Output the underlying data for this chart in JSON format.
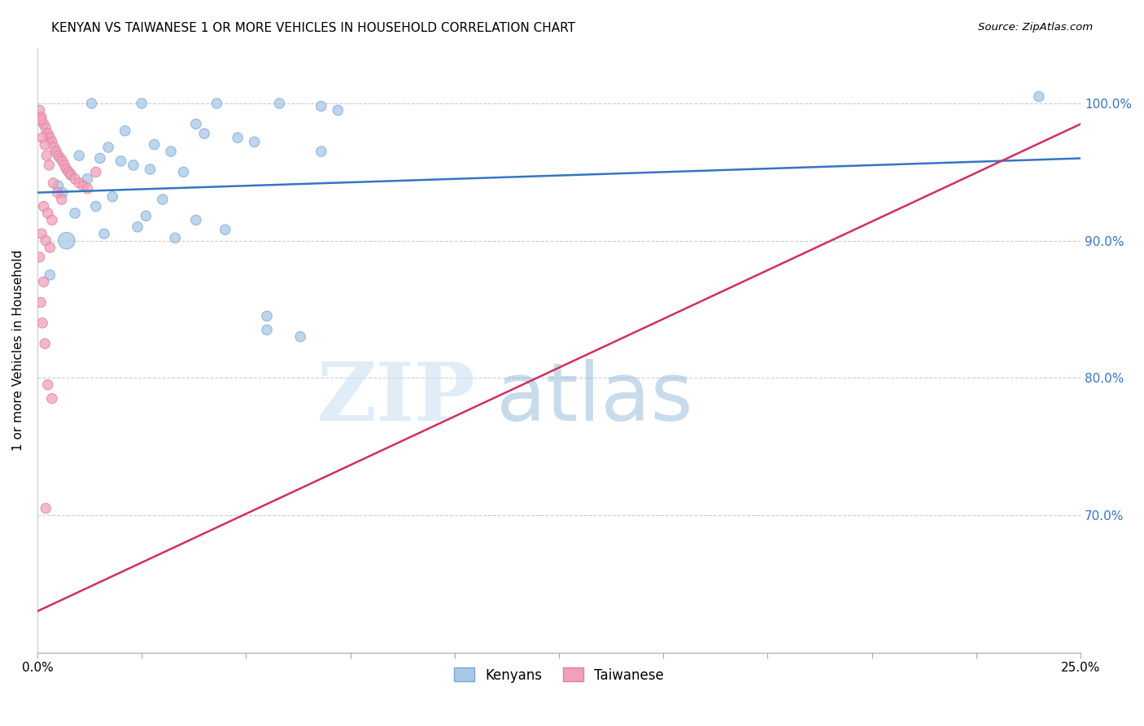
{
  "title": "KENYAN VS TAIWANESE 1 OR MORE VEHICLES IN HOUSEHOLD CORRELATION CHART",
  "source": "Source: ZipAtlas.com",
  "ylabel": "1 or more Vehicles in Household",
  "ytick_labels": [
    "70.0%",
    "80.0%",
    "90.0%",
    "100.0%"
  ],
  "ytick_vals": [
    70.0,
    80.0,
    90.0,
    100.0
  ],
  "xlim": [
    0.0,
    25.0
  ],
  "ylim": [
    60.0,
    104.0
  ],
  "kenyan_color": "#a8c8e8",
  "taiwanese_color": "#f0a0b8",
  "kenyan_edge_color": "#7aaad0",
  "taiwanese_edge_color": "#e080a0",
  "kenyan_line_color": "#3575c2",
  "taiwanese_line_color": "#d03060",
  "watermark_zip": "ZIP",
  "watermark_atlas": "atlas",
  "kenyan_x": [
    1.3,
    2.5,
    4.3,
    5.8,
    6.8,
    7.2,
    3.8,
    2.1,
    4.0,
    4.8,
    5.2,
    2.8,
    1.7,
    3.2,
    1.0,
    1.5,
    2.0,
    2.3,
    2.7,
    3.5,
    0.8,
    1.2,
    0.5,
    0.6,
    1.8,
    3.0,
    1.4,
    0.9,
    2.6,
    3.8,
    2.4,
    4.5,
    1.6,
    3.3,
    0.7,
    24.0,
    0.3,
    5.5,
    5.5,
    6.3,
    6.8
  ],
  "kenyan_y": [
    100.0,
    100.0,
    100.0,
    100.0,
    99.8,
    99.5,
    98.5,
    98.0,
    97.8,
    97.5,
    97.2,
    97.0,
    96.8,
    96.5,
    96.2,
    96.0,
    95.8,
    95.5,
    95.2,
    95.0,
    94.8,
    94.5,
    94.0,
    93.5,
    93.2,
    93.0,
    92.5,
    92.0,
    91.8,
    91.5,
    91.0,
    90.8,
    90.5,
    90.2,
    90.0,
    100.5,
    87.5,
    84.5,
    83.5,
    83.0,
    96.5
  ],
  "kenyan_sizes": [
    80,
    80,
    80,
    80,
    80,
    80,
    80,
    80,
    80,
    80,
    80,
    80,
    80,
    80,
    80,
    80,
    80,
    80,
    80,
    80,
    80,
    80,
    80,
    80,
    80,
    80,
    80,
    80,
    80,
    80,
    80,
    80,
    80,
    80,
    220,
    80,
    80,
    80,
    80,
    80,
    80
  ],
  "taiwanese_x": [
    0.05,
    0.1,
    0.15,
    0.2,
    0.25,
    0.3,
    0.35,
    0.4,
    0.45,
    0.5,
    0.55,
    0.6,
    0.65,
    0.7,
    0.75,
    0.8,
    0.9,
    1.0,
    1.1,
    1.2,
    1.4,
    0.08,
    0.12,
    0.18,
    0.22,
    0.28,
    0.38,
    0.48,
    0.58,
    0.15,
    0.25,
    0.35,
    0.1,
    0.2,
    0.3,
    0.05,
    0.15,
    0.08,
    0.12,
    0.18,
    0.25,
    0.35,
    0.2
  ],
  "taiwanese_y": [
    99.5,
    99.0,
    98.5,
    98.2,
    97.8,
    97.5,
    97.2,
    96.8,
    96.5,
    96.2,
    96.0,
    95.8,
    95.5,
    95.2,
    95.0,
    94.8,
    94.5,
    94.2,
    94.0,
    93.8,
    95.0,
    98.8,
    97.5,
    97.0,
    96.2,
    95.5,
    94.2,
    93.5,
    93.0,
    92.5,
    92.0,
    91.5,
    90.5,
    90.0,
    89.5,
    88.8,
    87.0,
    85.5,
    84.0,
    82.5,
    79.5,
    78.5,
    70.5
  ],
  "taiwanese_sizes": [
    80,
    80,
    80,
    80,
    80,
    80,
    80,
    80,
    80,
    80,
    80,
    80,
    80,
    80,
    80,
    80,
    80,
    80,
    80,
    80,
    80,
    80,
    80,
    80,
    80,
    80,
    80,
    80,
    80,
    80,
    80,
    80,
    80,
    80,
    80,
    80,
    80,
    80,
    80,
    80,
    80,
    80,
    80
  ],
  "kenyan_trendline": [
    93.5,
    96.0
  ],
  "taiwanese_trendline": [
    63.0,
    98.5
  ]
}
